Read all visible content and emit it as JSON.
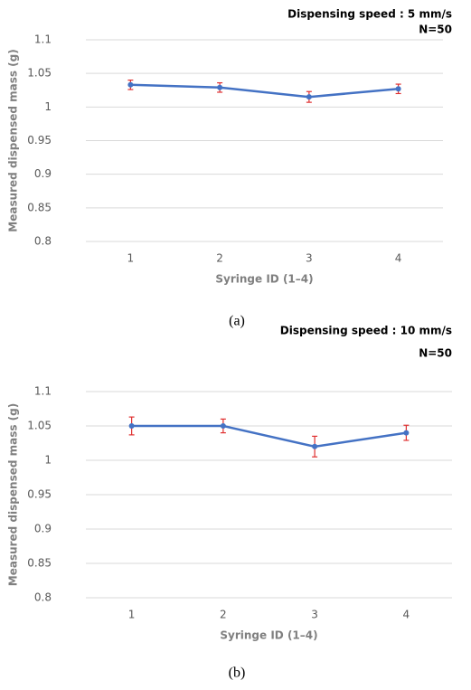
{
  "chart_data": [
    {
      "type": "line",
      "title": "Dispensing speed : 5 mm/s",
      "subtitle": "N=50",
      "x_label": "Syringe ID (1–4)",
      "y_label": "Measured dispensed mass (g)",
      "caption": "(a)",
      "categories": [
        "1",
        "2",
        "3",
        "4"
      ],
      "values": [
        1.033,
        1.029,
        1.015,
        1.027
      ],
      "errors": [
        0.007,
        0.007,
        0.008,
        0.007
      ],
      "color": "#4472c4",
      "error_color": "#e03030",
      "ylim": [
        0.8,
        1.1
      ],
      "yticks": [
        0.8,
        0.85,
        0.9,
        0.95,
        1,
        1.05,
        1.1
      ],
      "grid": true
    },
    {
      "type": "line",
      "title": "Dispensing speed : 10 mm/s",
      "subtitle": "N=50",
      "x_label": "Syringe ID (1–4)",
      "y_label": "Measured dispensed mass (g)",
      "caption": "(b)",
      "categories": [
        "1",
        "2",
        "3",
        "4"
      ],
      "values": [
        1.05,
        1.05,
        1.02,
        1.04
      ],
      "errors": [
        0.013,
        0.01,
        0.015,
        0.011
      ],
      "color": "#4472c4",
      "error_color": "#e03030",
      "ylim": [
        0.8,
        1.1
      ],
      "yticks": [
        0.8,
        0.85,
        0.9,
        0.95,
        1,
        1.05,
        1.1
      ],
      "grid": true
    }
  ]
}
